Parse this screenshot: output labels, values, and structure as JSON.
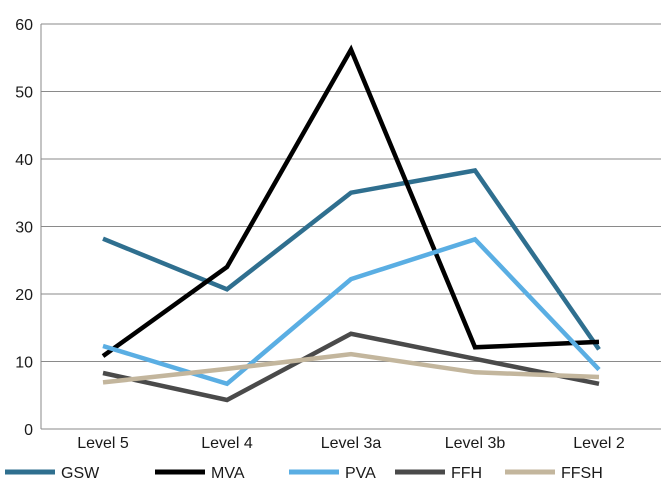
{
  "chart_data": {
    "type": "line",
    "title": "",
    "xlabel": "",
    "ylabel": "",
    "categories": [
      "Level 5",
      "Level 4",
      "Level 3a",
      "Level 3b",
      "Level 2"
    ],
    "ylim": [
      0,
      60
    ],
    "yticks": [
      0,
      10,
      20,
      30,
      40,
      50,
      60
    ],
    "grid": true,
    "legend_position": "bottom",
    "series": [
      {
        "name": "GSW",
        "color": "#2f6f8f",
        "values": [
          28.2,
          20.7,
          35.0,
          38.3,
          11.8
        ]
      },
      {
        "name": "MVA",
        "color": "#000000",
        "values": [
          10.8,
          24.0,
          56.2,
          12.1,
          12.9
        ]
      },
      {
        "name": "PVA",
        "color": "#5aaee3",
        "values": [
          12.3,
          6.7,
          22.2,
          28.1,
          8.8
        ]
      },
      {
        "name": "FFH",
        "color": "#4a4a4a",
        "values": [
          8.3,
          4.3,
          14.1,
          10.4,
          6.7
        ]
      },
      {
        "name": "FFSH",
        "color": "#c3b69d",
        "values": [
          6.9,
          8.9,
          11.1,
          8.4,
          7.7
        ]
      }
    ]
  }
}
